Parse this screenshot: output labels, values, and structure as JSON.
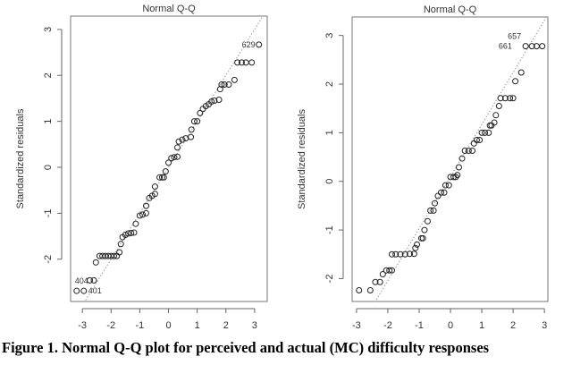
{
  "caption": "Figure 1. Normal Q-Q plot for perceived and actual (MC) difficulty responses",
  "chart_data": [
    {
      "type": "scatter",
      "title": "Normal Q-Q",
      "xlabel": "",
      "ylabel": "Standardized residuals",
      "xlim": [
        -3.41,
        3.44
      ],
      "ylim": [
        -2.92,
        3.29
      ],
      "xticks": [
        -3,
        -2,
        -1,
        0,
        1,
        2,
        3
      ],
      "yticks": [
        -2,
        -1,
        0,
        1,
        2,
        3
      ],
      "reference_line": {
        "slope": 1.0,
        "intercept": 0.0
      },
      "annotations": [
        {
          "text": "629",
          "x": 3.15,
          "y": 2.67
        },
        {
          "text": "404",
          "x": -3.2,
          "y": -2.69
        },
        {
          "text": "401",
          "x": -2.95,
          "y": -2.69
        }
      ],
      "points": [
        [
          -3.2,
          -2.69
        ],
        [
          -2.95,
          -2.69
        ],
        [
          -2.74,
          -2.46
        ],
        [
          -2.6,
          -2.46
        ],
        [
          -2.53,
          -2.07
        ],
        [
          -2.4,
          -1.93
        ],
        [
          -2.3,
          -1.93
        ],
        [
          -2.2,
          -1.93
        ],
        [
          -2.1,
          -1.93
        ],
        [
          -2.0,
          -1.93
        ],
        [
          -1.9,
          -1.93
        ],
        [
          -1.8,
          -1.93
        ],
        [
          -1.71,
          -1.85
        ],
        [
          -1.66,
          -1.67
        ],
        [
          -1.6,
          -1.52
        ],
        [
          -1.5,
          -1.47
        ],
        [
          -1.4,
          -1.44
        ],
        [
          -1.3,
          -1.43
        ],
        [
          -1.2,
          -1.42
        ],
        [
          -1.14,
          -1.23
        ],
        [
          -1.0,
          -1.05
        ],
        [
          -0.9,
          -1.03
        ],
        [
          -0.78,
          -1.0
        ],
        [
          -0.78,
          -0.84
        ],
        [
          -0.67,
          -0.67
        ],
        [
          -0.57,
          -0.62
        ],
        [
          -0.47,
          -0.58
        ],
        [
          -0.47,
          -0.42
        ],
        [
          -0.31,
          -0.22
        ],
        [
          -0.22,
          -0.22
        ],
        [
          -0.16,
          -0.22
        ],
        [
          -0.1,
          -0.09
        ],
        [
          0.0,
          0.1
        ],
        [
          0.1,
          0.2
        ],
        [
          0.2,
          0.22
        ],
        [
          0.31,
          0.23
        ],
        [
          0.31,
          0.43
        ],
        [
          0.36,
          0.56
        ],
        [
          0.48,
          0.6
        ],
        [
          0.6,
          0.63
        ],
        [
          0.78,
          0.66
        ],
        [
          0.8,
          0.82
        ],
        [
          0.9,
          1.0
        ],
        [
          1.0,
          1.0
        ],
        [
          1.1,
          1.18
        ],
        [
          1.2,
          1.27
        ],
        [
          1.3,
          1.33
        ],
        [
          1.4,
          1.37
        ],
        [
          1.5,
          1.43
        ],
        [
          1.6,
          1.45
        ],
        [
          1.76,
          1.47
        ],
        [
          1.8,
          1.7
        ],
        [
          1.85,
          1.8
        ],
        [
          1.95,
          1.8
        ],
        [
          2.1,
          1.8
        ],
        [
          2.3,
          1.9
        ],
        [
          2.4,
          2.28
        ],
        [
          2.55,
          2.28
        ],
        [
          2.7,
          2.28
        ],
        [
          2.9,
          2.28
        ],
        [
          3.15,
          2.67
        ]
      ]
    },
    {
      "type": "scatter",
      "title": "Normal Q-Q",
      "xlabel": "",
      "ylabel": "Standardized residuals",
      "xlim": [
        -3.14,
        3.11
      ],
      "ylim": [
        -2.47,
        3.38
      ],
      "xticks": [
        -3,
        -2,
        -1,
        0,
        1,
        2,
        3
      ],
      "yticks": [
        -2,
        -1,
        0,
        1,
        2,
        3
      ],
      "reference_line": {
        "slope": 1.07,
        "intercept": 0.1
      },
      "annotations": [
        {
          "text": "657",
          "x": 2.4,
          "y": 2.78
        },
        {
          "text": "661",
          "x": 2.65,
          "y": 2.78
        }
      ],
      "points": [
        [
          -2.92,
          -2.24
        ],
        [
          -2.56,
          -2.24
        ],
        [
          -2.4,
          -2.07
        ],
        [
          -2.25,
          -2.07
        ],
        [
          -2.16,
          -1.91
        ],
        [
          -2.05,
          -1.83
        ],
        [
          -1.95,
          -1.83
        ],
        [
          -1.87,
          -1.83
        ],
        [
          -1.87,
          -1.5
        ],
        [
          -1.75,
          -1.5
        ],
        [
          -1.6,
          -1.5
        ],
        [
          -1.45,
          -1.5
        ],
        [
          -1.3,
          -1.49
        ],
        [
          -1.16,
          -1.49
        ],
        [
          -1.12,
          -1.37
        ],
        [
          -1.07,
          -1.3
        ],
        [
          -0.93,
          -1.17
        ],
        [
          -0.88,
          -1.17
        ],
        [
          -0.83,
          -1.0
        ],
        [
          -0.73,
          -0.82
        ],
        [
          -0.64,
          -0.6
        ],
        [
          -0.54,
          -0.6
        ],
        [
          -0.5,
          -0.45
        ],
        [
          -0.4,
          -0.3
        ],
        [
          -0.3,
          -0.23
        ],
        [
          -0.2,
          -0.23
        ],
        [
          -0.16,
          -0.08
        ],
        [
          -0.05,
          -0.08
        ],
        [
          0.0,
          0.09
        ],
        [
          0.1,
          0.09
        ],
        [
          0.17,
          0.09
        ],
        [
          0.22,
          0.13
        ],
        [
          0.27,
          0.29
        ],
        [
          0.37,
          0.47
        ],
        [
          0.46,
          0.63
        ],
        [
          0.58,
          0.63
        ],
        [
          0.7,
          0.63
        ],
        [
          0.75,
          0.78
        ],
        [
          0.84,
          0.85
        ],
        [
          0.93,
          0.85
        ],
        [
          1.0,
          1.0
        ],
        [
          1.1,
          1.0
        ],
        [
          1.22,
          1.0
        ],
        [
          1.26,
          1.15
        ],
        [
          1.31,
          1.15
        ],
        [
          1.4,
          1.21
        ],
        [
          1.45,
          1.36
        ],
        [
          1.55,
          1.55
        ],
        [
          1.6,
          1.71
        ],
        [
          1.75,
          1.71
        ],
        [
          1.9,
          1.71
        ],
        [
          2.0,
          1.71
        ],
        [
          2.07,
          2.06
        ],
        [
          2.26,
          2.24
        ],
        [
          2.4,
          2.78
        ],
        [
          2.6,
          2.78
        ],
        [
          2.75,
          2.78
        ],
        [
          2.93,
          2.78
        ]
      ]
    }
  ]
}
